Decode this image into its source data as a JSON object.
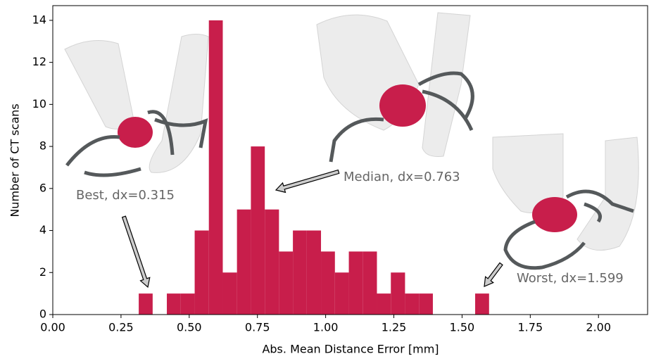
{
  "chart_data": {
    "type": "histogram",
    "xlabel": "Abs. Mean Distance Error [mm]",
    "ylabel": "Number of CT scans",
    "bins": [
      0.315,
      0.366,
      0.418,
      0.469,
      0.52,
      0.572,
      0.623,
      0.675,
      0.726,
      0.777,
      0.829,
      0.88,
      0.931,
      0.983,
      1.034,
      1.085,
      1.137,
      1.188,
      1.239,
      1.291,
      1.342,
      1.393,
      1.445,
      1.496,
      1.548,
      1.599
    ],
    "values": [
      1,
      0,
      1,
      1,
      4,
      14,
      2,
      5,
      8,
      5,
      3,
      4,
      4,
      3,
      2,
      3,
      3,
      1,
      2,
      1,
      1,
      0,
      0,
      0,
      1
    ],
    "color": "#c81e4b",
    "xlim": [
      0,
      2.18
    ],
    "ylim": [
      0,
      14.7
    ],
    "xticks": [
      {
        "value": 0,
        "label": "0.00"
      },
      {
        "value": 0.25,
        "label": "0.25"
      },
      {
        "value": 0.5,
        "label": "0.50"
      },
      {
        "value": 0.75,
        "label": "0.75"
      },
      {
        "value": 1,
        "label": "1.00"
      },
      {
        "value": 1.25,
        "label": "1.25"
      },
      {
        "value": 1.5,
        "label": "1.50"
      },
      {
        "value": 1.75,
        "label": "1.75"
      },
      {
        "value": 2,
        "label": "2.00"
      }
    ],
    "yticks": [
      0,
      2,
      4,
      6,
      8,
      10,
      12,
      14
    ],
    "annotations": [
      "Best, dx=0.315",
      "Median, dx=0.763",
      "Worst, dx=1.599"
    ]
  }
}
